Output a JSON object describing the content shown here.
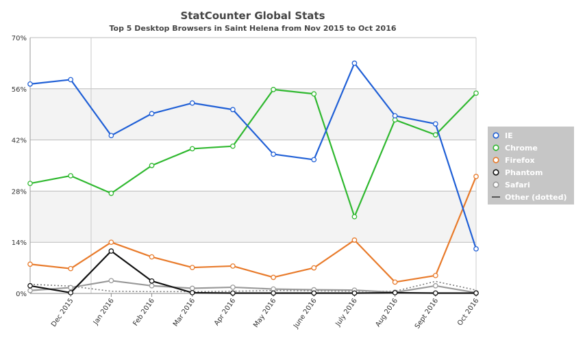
{
  "chart_data": {
    "type": "line",
    "title": "StatCounter Global Stats",
    "subtitle": "Top 5 Desktop Browsers in Saint Helena from Nov 2015 to Oct 2016",
    "categories": [
      "Nov 2015",
      "Dec 2015",
      "Jan 2016",
      "Feb 2016",
      "Mar 2016",
      "Apr 2016",
      "May 2016",
      "June 2016",
      "July 2016",
      "Aug 2016",
      "Sept 2016",
      "Oct 2016"
    ],
    "x_tick_labels": [
      "Dec 2015",
      "Jan 2016",
      "Feb 2016",
      "Mar 2016",
      "Apr 2016",
      "May 2016",
      "June 2016",
      "July 2016",
      "Aug 2016",
      "Sept 2016",
      "Oct 2016"
    ],
    "ylim": [
      0,
      70
    ],
    "y_ticks": [
      0,
      14,
      28,
      42,
      56,
      70
    ],
    "y_tick_labels": [
      "0%",
      "14%",
      "28%",
      "42%",
      "56%",
      "70%"
    ],
    "grid": true,
    "legend_position": "right",
    "series": [
      {
        "name": "IE",
        "color": "#1f5fd6",
        "values": [
          57.3,
          58.5,
          43.2,
          49.2,
          52.1,
          50.3,
          38.1,
          36.6,
          63.0,
          48.6,
          46.4,
          12.2
        ]
      },
      {
        "name": "Chrome",
        "color": "#2fb82f",
        "values": [
          30.1,
          32.2,
          27.4,
          35.0,
          39.6,
          40.3,
          55.8,
          54.6,
          21.0,
          47.5,
          43.4,
          54.8
        ]
      },
      {
        "name": "Firefox",
        "color": "#e87a2a",
        "values": [
          8.0,
          6.8,
          14.0,
          10.0,
          7.1,
          7.5,
          4.4,
          7.0,
          14.6,
          3.1,
          4.9,
          32.0
        ]
      },
      {
        "name": "Phantom",
        "color": "#111111",
        "values": [
          2.1,
          0.2,
          11.6,
          3.4,
          0.2,
          0.1,
          0.1,
          0.1,
          0.1,
          0.2,
          0.1,
          0.1
        ]
      },
      {
        "name": "Safari",
        "color": "#999999",
        "values": [
          0.8,
          1.6,
          3.5,
          2.1,
          1.4,
          1.7,
          1.2,
          1.0,
          0.9,
          0.3,
          2.1,
          0.2
        ]
      },
      {
        "name": "Other (dotted)",
        "color": "#777777",
        "dotted": true,
        "values": [
          2.5,
          2.0,
          0.6,
          0.5,
          0.5,
          0.6,
          0.8,
          0.7,
          0.6,
          0.6,
          3.3,
          0.9
        ]
      }
    ]
  }
}
